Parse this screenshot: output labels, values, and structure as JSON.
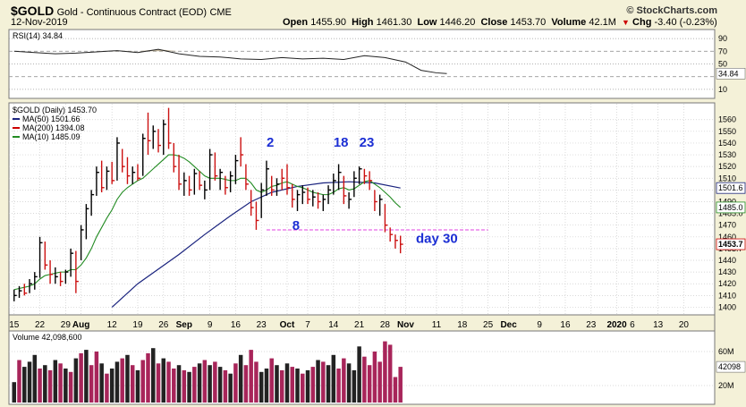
{
  "header": {
    "symbol": "$GOLD",
    "name": "Gold - Continuous Contract (EOD)",
    "exchange": "CME",
    "date": "12-Nov-2019",
    "open_label": "Open",
    "open": "1455.90",
    "high_label": "High",
    "high": "1461.30",
    "low_label": "Low",
    "low": "1446.20",
    "close_label": "Close",
    "close": "1453.70",
    "volume_label": "Volume",
    "volume": "42.1M",
    "chg_label": "Chg",
    "chg": "-3.40 (-0.23%)",
    "chg_arrow": "▼",
    "brand": "© StockCharts.com"
  },
  "chart_data": {
    "type": "ohlc",
    "rsi_panel": {
      "legend": "RSI(14) 34.84",
      "current_label": "34.84",
      "ticks": [
        90,
        70,
        50,
        30,
        10
      ],
      "ylim": [
        0,
        100
      ],
      "values": [
        {
          "x": 0,
          "y": 70
        },
        {
          "x": 4,
          "y": 68
        },
        {
          "x": 8,
          "y": 66
        },
        {
          "x": 12,
          "y": 67
        },
        {
          "x": 16,
          "y": 69
        },
        {
          "x": 20,
          "y": 71
        },
        {
          "x": 24,
          "y": 68
        },
        {
          "x": 28,
          "y": 73
        },
        {
          "x": 32,
          "y": 66
        },
        {
          "x": 36,
          "y": 62
        },
        {
          "x": 40,
          "y": 61
        },
        {
          "x": 44,
          "y": 58
        },
        {
          "x": 48,
          "y": 57
        },
        {
          "x": 52,
          "y": 60
        },
        {
          "x": 56,
          "y": 58
        },
        {
          "x": 60,
          "y": 59
        },
        {
          "x": 64,
          "y": 57
        },
        {
          "x": 68,
          "y": 63
        },
        {
          "x": 72,
          "y": 60
        },
        {
          "x": 76,
          "y": 53
        },
        {
          "x": 79,
          "y": 40
        },
        {
          "x": 82,
          "y": 36
        },
        {
          "x": 84,
          "y": 34.84
        }
      ]
    },
    "price_panel": {
      "legend_title": "$GOLD (Daily) 1453.70",
      "legend": [
        {
          "label": "MA(50) 1501.66",
          "color": "#1a237e"
        },
        {
          "label": "MA(200) 1394.08",
          "color": "#cc0000"
        },
        {
          "label": "MA(10) 1485.09",
          "color": "#228b22"
        }
      ],
      "y_ticks": [
        1560,
        1550,
        1540,
        1530,
        1520,
        1510,
        1500,
        1490,
        1480,
        1470,
        1460,
        1450,
        1440,
        1430,
        1420,
        1410,
        1400
      ],
      "y_tick_labels": [
        "1560",
        "1550",
        "1540",
        "1530",
        "1520",
        "1510",
        "1501.6",
        "1490",
        "1485.0",
        "1470",
        "1460",
        "1453.7",
        "1440",
        "1430",
        "1420",
        "1410",
        "1400"
      ],
      "ylim": [
        1395,
        1572
      ],
      "value_tags": [
        {
          "label": "1501.6",
          "y": 1501.66,
          "color": "#1a237e"
        },
        {
          "label": "1485.0",
          "y": 1485.09,
          "color": "#228b22"
        },
        {
          "label": "1453.7",
          "y": 1453.7,
          "color": "#cc0000"
        }
      ],
      "support_line_y": 1466,
      "annotations": [
        {
          "text": "2",
          "x": 49,
          "y": 1537
        },
        {
          "text": "18",
          "x": 62,
          "y": 1537
        },
        {
          "text": "23",
          "x": 67,
          "y": 1537
        },
        {
          "text": "8",
          "x": 54,
          "y": 1466
        },
        {
          "text": "day 30",
          "x": 78,
          "y": 1455
        }
      ],
      "bars": [
        [
          1415,
          1405,
          1410,
          "u"
        ],
        [
          1418,
          1408,
          1414,
          "u"
        ],
        [
          1420,
          1410,
          1412,
          "d"
        ],
        [
          1424,
          1412,
          1420,
          "u"
        ],
        [
          1430,
          1415,
          1426,
          "u"
        ],
        [
          1460,
          1425,
          1455,
          "u"
        ],
        [
          1456,
          1432,
          1436,
          "d"
        ],
        [
          1440,
          1420,
          1428,
          "d"
        ],
        [
          1434,
          1420,
          1426,
          "u"
        ],
        [
          1430,
          1418,
          1422,
          "d"
        ],
        [
          1432,
          1420,
          1430,
          "u"
        ],
        [
          1450,
          1426,
          1446,
          "u"
        ],
        [
          1448,
          1412,
          1422,
          "d"
        ],
        [
          1470,
          1440,
          1466,
          "u"
        ],
        [
          1488,
          1458,
          1484,
          "u"
        ],
        [
          1500,
          1478,
          1496,
          "u"
        ],
        [
          1520,
          1495,
          1515,
          "u"
        ],
        [
          1525,
          1498,
          1502,
          "d"
        ],
        [
          1520,
          1500,
          1516,
          "u"
        ],
        [
          1524,
          1505,
          1508,
          "d"
        ],
        [
          1545,
          1508,
          1540,
          "u"
        ],
        [
          1535,
          1515,
          1520,
          "d"
        ],
        [
          1528,
          1505,
          1512,
          "d"
        ],
        [
          1520,
          1505,
          1515,
          "u"
        ],
        [
          1522,
          1508,
          1510,
          "d"
        ],
        [
          1548,
          1512,
          1544,
          "u"
        ],
        [
          1566,
          1530,
          1542,
          "d"
        ],
        [
          1555,
          1535,
          1550,
          "u"
        ],
        [
          1552,
          1532,
          1538,
          "d"
        ],
        [
          1560,
          1530,
          1556,
          "u"
        ],
        [
          1570,
          1535,
          1540,
          "d"
        ],
        [
          1540,
          1515,
          1520,
          "d"
        ],
        [
          1530,
          1500,
          1505,
          "d"
        ],
        [
          1515,
          1495,
          1508,
          "u"
        ],
        [
          1512,
          1495,
          1500,
          "d"
        ],
        [
          1518,
          1496,
          1514,
          "u"
        ],
        [
          1516,
          1500,
          1504,
          "d"
        ],
        [
          1508,
          1492,
          1500,
          "u"
        ],
        [
          1535,
          1500,
          1530,
          "u"
        ],
        [
          1532,
          1508,
          1512,
          "d"
        ],
        [
          1518,
          1500,
          1515,
          "u"
        ],
        [
          1512,
          1496,
          1502,
          "d"
        ],
        [
          1516,
          1498,
          1512,
          "u"
        ],
        [
          1530,
          1505,
          1525,
          "u"
        ],
        [
          1545,
          1520,
          1530,
          "d"
        ],
        [
          1522,
          1500,
          1505,
          "d"
        ],
        [
          1500,
          1478,
          1485,
          "d"
        ],
        [
          1490,
          1466,
          1474,
          "d"
        ],
        [
          1506,
          1476,
          1500,
          "u"
        ],
        [
          1525,
          1495,
          1518,
          "u"
        ],
        [
          1512,
          1495,
          1500,
          "d"
        ],
        [
          1510,
          1495,
          1505,
          "u"
        ],
        [
          1518,
          1500,
          1510,
          "d"
        ],
        [
          1522,
          1496,
          1502,
          "d"
        ],
        [
          1505,
          1485,
          1492,
          "d"
        ],
        [
          1500,
          1482,
          1496,
          "u"
        ],
        [
          1504,
          1488,
          1498,
          "u"
        ],
        [
          1502,
          1488,
          1492,
          "d"
        ],
        [
          1500,
          1486,
          1494,
          "u"
        ],
        [
          1498,
          1484,
          1490,
          "d"
        ],
        [
          1496,
          1482,
          1492,
          "u"
        ],
        [
          1504,
          1488,
          1500,
          "u"
        ],
        [
          1514,
          1496,
          1508,
          "u"
        ],
        [
          1522,
          1500,
          1515,
          "u"
        ],
        [
          1512,
          1488,
          1495,
          "d"
        ],
        [
          1498,
          1484,
          1492,
          "u"
        ],
        [
          1516,
          1494,
          1510,
          "u"
        ],
        [
          1520,
          1505,
          1518,
          "u"
        ],
        [
          1518,
          1505,
          1512,
          "d"
        ],
        [
          1516,
          1500,
          1508,
          "d"
        ],
        [
          1500,
          1482,
          1490,
          "d"
        ],
        [
          1496,
          1478,
          1492,
          "u"
        ],
        [
          1488,
          1464,
          1470,
          "d"
        ],
        [
          1468,
          1456,
          1462,
          "d"
        ],
        [
          1462,
          1450,
          1457,
          "d"
        ],
        [
          1461,
          1446,
          1453.7,
          "d"
        ]
      ],
      "ma10": [
        1415,
        1416,
        1417,
        1418,
        1420,
        1424,
        1427,
        1428,
        1429,
        1430,
        1430,
        1432,
        1432,
        1436,
        1442,
        1450,
        1460,
        1468,
        1476,
        1483,
        1492,
        1498,
        1502,
        1505,
        1508,
        1510,
        1514,
        1518,
        1522,
        1526,
        1530,
        1530,
        1529,
        1527,
        1524,
        1520,
        1516,
        1512,
        1510,
        1510,
        1510,
        1509,
        1508,
        1508,
        1510,
        1510,
        1506,
        1500,
        1498,
        1500,
        1503,
        1504,
        1506,
        1507,
        1505,
        1503,
        1502,
        1500,
        1498,
        1497,
        1496,
        1496,
        1498,
        1501,
        1502,
        1500,
        1501,
        1504,
        1507,
        1508,
        1505,
        1502,
        1498,
        1494,
        1489,
        1485.09
      ],
      "ma50": [
        [
          19,
          1400
        ],
        [
          24,
          1420
        ],
        [
          32,
          1445
        ],
        [
          37,
          1462
        ],
        [
          42,
          1478
        ],
        [
          46,
          1490
        ],
        [
          50,
          1498
        ],
        [
          55,
          1503
        ],
        [
          60,
          1506
        ],
        [
          65,
          1507
        ],
        [
          70,
          1506
        ],
        [
          75,
          1501.66
        ]
      ]
    },
    "volume_panel": {
      "legend": "Volume 42,098,600",
      "ticks": [
        {
          "label": "60M",
          "v": 60
        },
        {
          "label": "20M",
          "v": 20
        }
      ],
      "current_label": "42098",
      "ymax": 80,
      "values": [
        [
          24,
          "u"
        ],
        [
          50,
          "d"
        ],
        [
          42,
          "u"
        ],
        [
          48,
          "u"
        ],
        [
          56,
          "u"
        ],
        [
          40,
          "d"
        ],
        [
          44,
          "u"
        ],
        [
          38,
          "d"
        ],
        [
          50,
          "u"
        ],
        [
          46,
          "d"
        ],
        [
          40,
          "u"
        ],
        [
          36,
          "d"
        ],
        [
          52,
          "u"
        ],
        [
          58,
          "d"
        ],
        [
          62,
          "u"
        ],
        [
          44,
          "d"
        ],
        [
          60,
          "d"
        ],
        [
          46,
          "u"
        ],
        [
          34,
          "d"
        ],
        [
          40,
          "u"
        ],
        [
          48,
          "u"
        ],
        [
          52,
          "d"
        ],
        [
          56,
          "u"
        ],
        [
          44,
          "d"
        ],
        [
          38,
          "u"
        ],
        [
          50,
          "d"
        ],
        [
          58,
          "d"
        ],
        [
          64,
          "u"
        ],
        [
          46,
          "d"
        ],
        [
          52,
          "u"
        ],
        [
          48,
          "d"
        ],
        [
          40,
          "d"
        ],
        [
          44,
          "u"
        ],
        [
          38,
          "d"
        ],
        [
          36,
          "u"
        ],
        [
          42,
          "d"
        ],
        [
          46,
          "u"
        ],
        [
          50,
          "d"
        ],
        [
          44,
          "u"
        ],
        [
          48,
          "d"
        ],
        [
          42,
          "u"
        ],
        [
          38,
          "d"
        ],
        [
          34,
          "u"
        ],
        [
          46,
          "d"
        ],
        [
          56,
          "u"
        ],
        [
          44,
          "d"
        ],
        [
          62,
          "d"
        ],
        [
          48,
          "d"
        ],
        [
          36,
          "u"
        ],
        [
          40,
          "u"
        ],
        [
          52,
          "d"
        ],
        [
          44,
          "u"
        ],
        [
          38,
          "d"
        ],
        [
          46,
          "u"
        ],
        [
          42,
          "d"
        ],
        [
          40,
          "u"
        ],
        [
          34,
          "d"
        ],
        [
          38,
          "u"
        ],
        [
          42,
          "d"
        ],
        [
          50,
          "u"
        ],
        [
          48,
          "d"
        ],
        [
          44,
          "u"
        ],
        [
          56,
          "u"
        ],
        [
          40,
          "d"
        ],
        [
          52,
          "d"
        ],
        [
          46,
          "u"
        ],
        [
          38,
          "u"
        ],
        [
          66,
          "u"
        ],
        [
          54,
          "d"
        ],
        [
          44,
          "d"
        ],
        [
          60,
          "d"
        ],
        [
          48,
          "d"
        ],
        [
          72,
          "d"
        ],
        [
          68,
          "d"
        ],
        [
          30,
          "d"
        ],
        [
          42,
          "d"
        ]
      ]
    },
    "x_axis": {
      "labels": [
        {
          "text": "15",
          "bold": false,
          "x": 0
        },
        {
          "text": "22",
          "bold": false,
          "x": 5
        },
        {
          "text": "29",
          "bold": false,
          "x": 10
        },
        {
          "text": "Aug",
          "bold": true,
          "x": 13
        },
        {
          "text": "12",
          "bold": false,
          "x": 19
        },
        {
          "text": "19",
          "bold": false,
          "x": 24
        },
        {
          "text": "26",
          "bold": false,
          "x": 29
        },
        {
          "text": "Sep",
          "bold": true,
          "x": 33
        },
        {
          "text": "9",
          "bold": false,
          "x": 38
        },
        {
          "text": "16",
          "bold": false,
          "x": 43
        },
        {
          "text": "23",
          "bold": false,
          "x": 48
        },
        {
          "text": "Oct",
          "bold": true,
          "x": 53
        },
        {
          "text": "7",
          "bold": false,
          "x": 57
        },
        {
          "text": "14",
          "bold": false,
          "x": 62
        },
        {
          "text": "21",
          "bold": false,
          "x": 67
        },
        {
          "text": "28",
          "bold": false,
          "x": 72
        },
        {
          "text": "Nov",
          "bold": true,
          "x": 76
        },
        {
          "text": "11",
          "bold": false,
          "x": 82
        },
        {
          "text": "18",
          "bold": false,
          "x": 87
        },
        {
          "text": "25",
          "bold": false,
          "x": 92
        },
        {
          "text": "Dec",
          "bold": true,
          "x": 96
        },
        {
          "text": "9",
          "bold": false,
          "x": 102
        },
        {
          "text": "16",
          "bold": false,
          "x": 107
        },
        {
          "text": "23",
          "bold": false,
          "x": 112
        },
        {
          "text": "2020",
          "bold": true,
          "x": 117
        },
        {
          "text": "6",
          "bold": false,
          "x": 120
        },
        {
          "text": "13",
          "bold": false,
          "x": 125
        },
        {
          "text": "20",
          "bold": false,
          "x": 130
        }
      ],
      "xlim": [
        -1,
        136
      ]
    }
  }
}
